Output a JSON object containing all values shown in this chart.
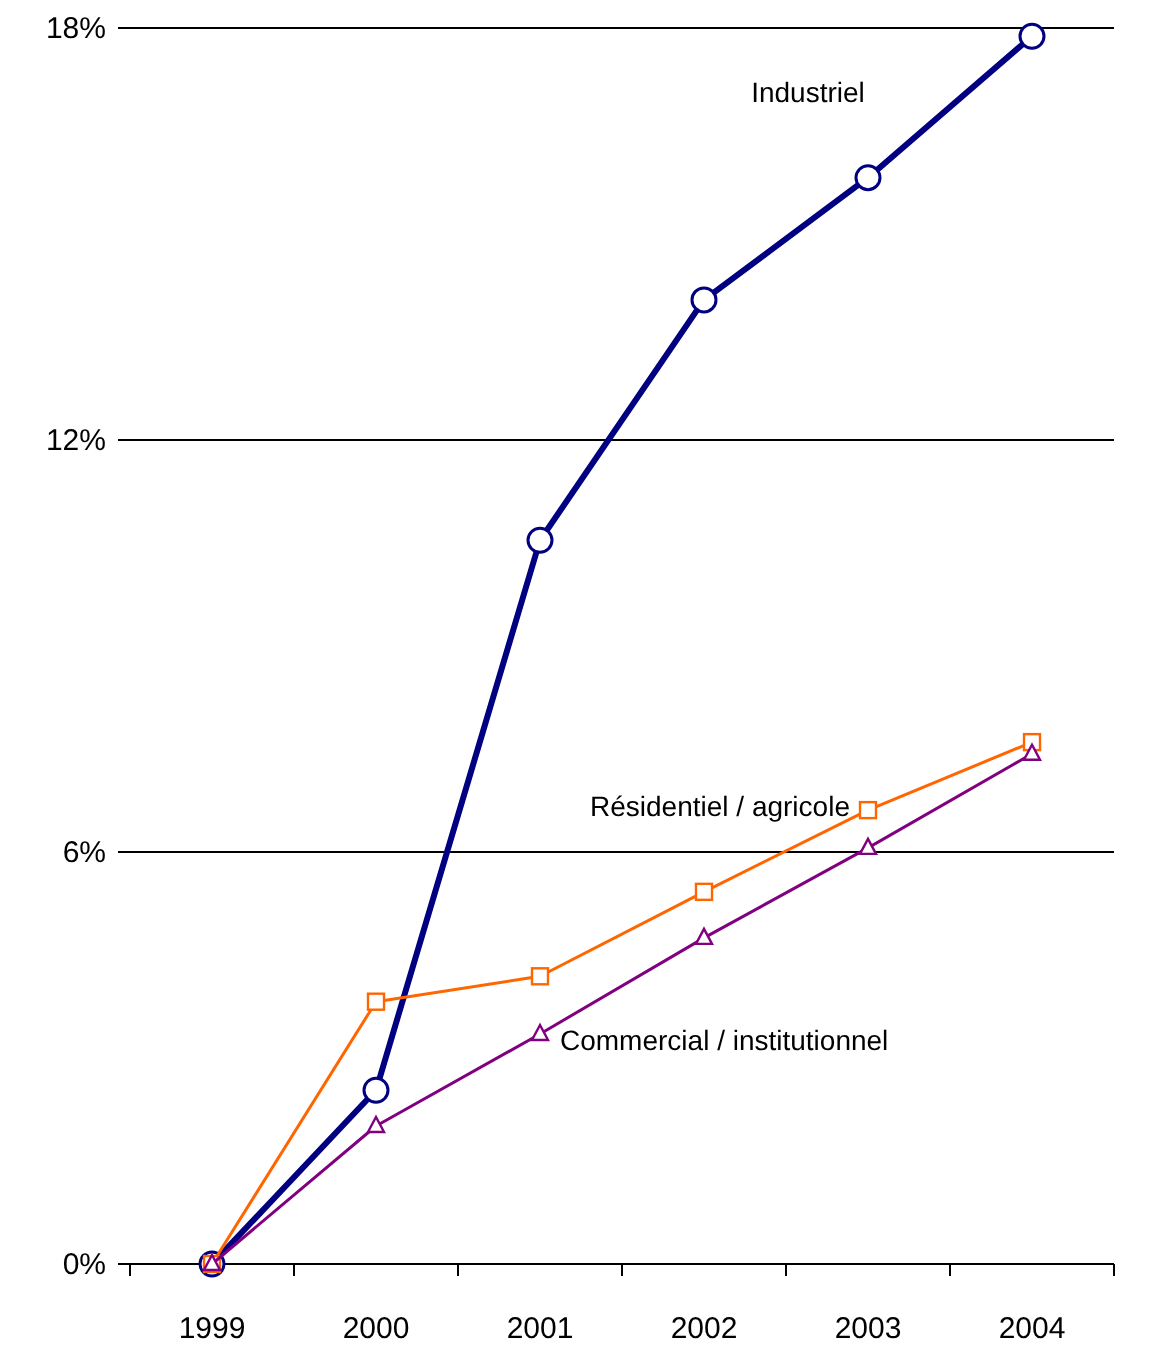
{
  "chart_data": {
    "type": "line",
    "categories": [
      "1999",
      "2000",
      "2001",
      "2002",
      "2003",
      "2004"
    ],
    "series": [
      {
        "name": "Industriel",
        "color": "#000080",
        "values": [
          0,
          2.53,
          10.54,
          14.04,
          15.82,
          17.88
        ],
        "marker": "circle"
      },
      {
        "name": "Résidentiel / agricole",
        "color": "#ff6600",
        "values": [
          0,
          3.82,
          4.19,
          5.42,
          6.61,
          7.6
        ],
        "marker": "square"
      },
      {
        "name": "Commercial / institutionnel",
        "color": "#800080",
        "values": [
          0,
          2.01,
          3.35,
          4.75,
          6.06,
          7.43
        ],
        "marker": "triangle"
      }
    ],
    "ylim": [
      0,
      18
    ],
    "yticks": [
      {
        "value": 0,
        "label": "0%"
      },
      {
        "value": 6,
        "label": "6%"
      },
      {
        "value": 12,
        "label": "12%"
      },
      {
        "value": 18,
        "label": "18%"
      }
    ],
    "grid": "y"
  }
}
